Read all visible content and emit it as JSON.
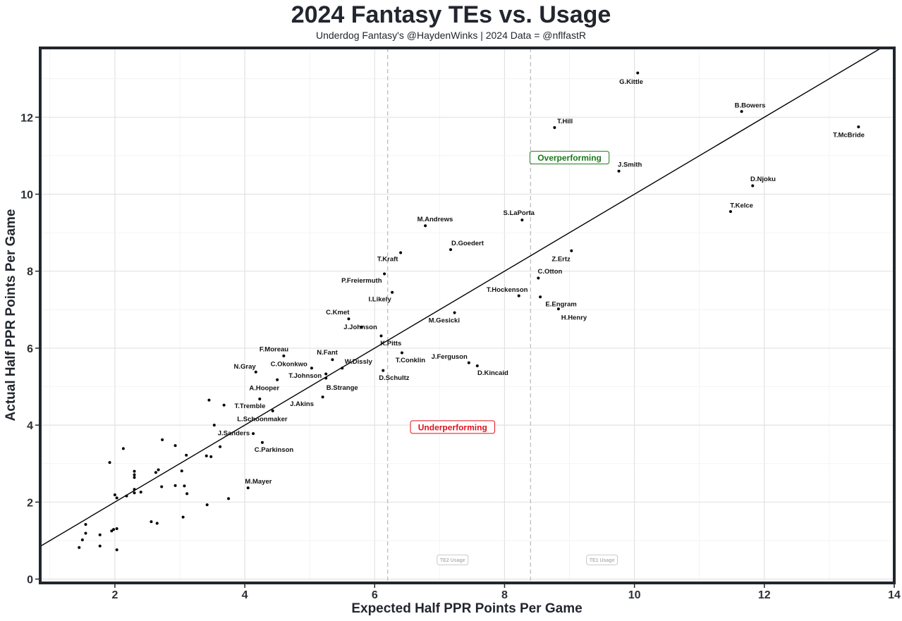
{
  "title": "2024 Fantasy TEs vs. Usage",
  "subtitle": "Underdog Fantasy's @HaydenWinks | 2024 Data = @nflfastR",
  "chart_data": {
    "type": "scatter",
    "title": "2024 Fantasy TEs vs. Usage",
    "subtitle": "Underdog Fantasy's @HaydenWinks | 2024 Data = @nflfastR",
    "xlabel": "Expected Half PPR Points Per Game",
    "ylabel": "Actual Half PPR Points Per Game",
    "xlim": [
      0.85,
      14.0
    ],
    "ylim": [
      -0.1,
      13.8
    ],
    "x_ticks": [
      2,
      4,
      6,
      8,
      10,
      12,
      14
    ],
    "y_ticks": [
      0,
      2,
      4,
      6,
      8,
      10,
      12
    ],
    "grid": true,
    "reference_line": {
      "slope": 1,
      "intercept": 0
    },
    "vlines": [
      {
        "x": 6.2,
        "label": "TE2 Usage",
        "label_x": 7.2,
        "label_y": 0.5
      },
      {
        "x": 8.4,
        "label": "TE1 Usage",
        "label_x": 9.5,
        "label_y": 0.5
      }
    ],
    "annotations": [
      {
        "text": "Overperforming",
        "x": 9.0,
        "y": 10.95,
        "color": "#1a7a1a"
      },
      {
        "text": "Underperforming",
        "x": 7.2,
        "y": 3.95,
        "color": "#e0111b"
      }
    ],
    "points": [
      {
        "name": "G.Kittle",
        "x": 10.05,
        "y": 13.15,
        "lx": 9.95,
        "ly": 12.93
      },
      {
        "name": "B.Bowers",
        "x": 11.65,
        "y": 12.15,
        "lx": 11.78,
        "ly": 12.32
      },
      {
        "name": "T.McBride",
        "x": 13.45,
        "y": 11.75,
        "lx": 13.3,
        "ly": 11.55
      },
      {
        "name": "T.Hill",
        "x": 8.77,
        "y": 11.73,
        "lx": 8.93,
        "ly": 11.9
      },
      {
        "name": "J.Smith",
        "x": 9.76,
        "y": 10.6,
        "lx": 9.93,
        "ly": 10.78
      },
      {
        "name": "D.Njoku",
        "x": 11.82,
        "y": 10.22,
        "lx": 11.98,
        "ly": 10.4
      },
      {
        "name": "T.Kelce",
        "x": 11.48,
        "y": 9.55,
        "lx": 11.65,
        "ly": 9.72
      },
      {
        "name": "S.LaPorta",
        "x": 8.27,
        "y": 9.33,
        "lx": 8.22,
        "ly": 9.52
      },
      {
        "name": "M.Andrews",
        "x": 6.78,
        "y": 9.18,
        "lx": 6.93,
        "ly": 9.36
      },
      {
        "name": "D.Goedert",
        "x": 7.17,
        "y": 8.56,
        "lx": 7.43,
        "ly": 8.74
      },
      {
        "name": "Z.Ertz",
        "x": 9.03,
        "y": 8.53,
        "lx": 8.87,
        "ly": 8.32
      },
      {
        "name": "T.Kraft",
        "x": 6.4,
        "y": 8.48,
        "lx": 6.2,
        "ly": 8.32
      },
      {
        "name": "P.Freiermuth",
        "x": 6.15,
        "y": 7.93,
        "lx": 5.8,
        "ly": 7.77
      },
      {
        "name": "C.Otton",
        "x": 8.52,
        "y": 7.82,
        "lx": 8.7,
        "ly": 8.0
      },
      {
        "name": "I.Likely",
        "x": 6.27,
        "y": 7.45,
        "lx": 6.08,
        "ly": 7.28
      },
      {
        "name": "T.Hockenson",
        "x": 8.22,
        "y": 7.36,
        "lx": 8.04,
        "ly": 7.53
      },
      {
        "name": "E.Engram",
        "x": 8.55,
        "y": 7.33,
        "lx": 8.87,
        "ly": 7.15
      },
      {
        "name": "H.Henry",
        "x": 8.83,
        "y": 7.02,
        "lx": 9.07,
        "ly": 6.8
      },
      {
        "name": "C.Kmet",
        "x": 5.6,
        "y": 6.76,
        "lx": 5.43,
        "ly": 6.94
      },
      {
        "name": "M.Gesicki",
        "x": 7.23,
        "y": 6.92,
        "lx": 7.07,
        "ly": 6.73
      },
      {
        "name": "J.Johnson",
        "x": 5.8,
        "y": 6.55,
        "lx": 5.78,
        "ly": 6.56
      },
      {
        "name": "K.Pitts",
        "x": 6.1,
        "y": 6.32,
        "lx": 6.25,
        "ly": 6.14
      },
      {
        "name": "F.Moreau",
        "x": 4.6,
        "y": 5.8,
        "lx": 4.45,
        "ly": 5.98
      },
      {
        "name": "T.Conklin",
        "x": 6.42,
        "y": 5.88,
        "lx": 6.55,
        "ly": 5.7
      },
      {
        "name": "N.Fant",
        "x": 5.35,
        "y": 5.7,
        "lx": 5.27,
        "ly": 5.9
      },
      {
        "name": "J.Ferguson",
        "x": 7.45,
        "y": 5.62,
        "lx": 7.15,
        "ly": 5.79
      },
      {
        "name": "W.Dissly",
        "x": 5.5,
        "y": 5.48,
        "lx": 5.75,
        "ly": 5.66
      },
      {
        "name": "D.Kincaid",
        "x": 7.58,
        "y": 5.54,
        "lx": 7.82,
        "ly": 5.37
      },
      {
        "name": "C.Okonkwo",
        "x": 5.03,
        "y": 5.48,
        "lx": 4.68,
        "ly": 5.6
      },
      {
        "name": "N.Gray",
        "x": 4.17,
        "y": 5.38,
        "lx": 4.0,
        "ly": 5.53
      },
      {
        "name": "D.Schultz",
        "x": 6.13,
        "y": 5.42,
        "lx": 6.3,
        "ly": 5.24
      },
      {
        "name": "T.Johnson",
        "x": 5.25,
        "y": 5.33,
        "lx": 4.93,
        "ly": 5.29
      },
      {
        "name": "B.Strange",
        "x": 5.25,
        "y": 5.22,
        "lx": 5.5,
        "ly": 4.98
      },
      {
        "name": "A.Hooper",
        "x": 4.5,
        "y": 5.18,
        "lx": 4.3,
        "ly": 4.97
      },
      {
        "name": "J.Akins",
        "x": 5.2,
        "y": 4.73,
        "lx": 4.88,
        "ly": 4.56
      },
      {
        "name": "T.Tremble",
        "x": 4.23,
        "y": 4.68,
        "lx": 4.08,
        "ly": 4.51
      },
      {
        "name": "L.Schoonmaker",
        "x": 4.43,
        "y": 4.37,
        "lx": 4.27,
        "ly": 4.17
      },
      {
        "name": "J.Sanders",
        "x": 3.53,
        "y": 4.0,
        "lx": 3.83,
        "ly": 3.8
      },
      {
        "name": "C.Parkinson",
        "x": 4.27,
        "y": 3.55,
        "lx": 4.45,
        "ly": 3.37
      },
      {
        "name": "M.Mayer",
        "x": 4.05,
        "y": 2.37,
        "lx": 4.21,
        "ly": 2.55
      },
      {
        "x": 3.45,
        "y": 4.65
      },
      {
        "x": 3.68,
        "y": 4.52
      },
      {
        "x": 4.13,
        "y": 3.78
      },
      {
        "x": 2.73,
        "y": 3.62
      },
      {
        "x": 2.93,
        "y": 3.47
      },
      {
        "x": 2.13,
        "y": 3.39
      },
      {
        "x": 3.62,
        "y": 3.44
      },
      {
        "x": 3.1,
        "y": 3.22
      },
      {
        "x": 3.41,
        "y": 3.2
      },
      {
        "x": 3.48,
        "y": 3.18
      },
      {
        "x": 1.92,
        "y": 3.03
      },
      {
        "x": 2.3,
        "y": 2.8
      },
      {
        "x": 2.67,
        "y": 2.84
      },
      {
        "x": 3.03,
        "y": 2.81
      },
      {
        "x": 2.63,
        "y": 2.77
      },
      {
        "x": 2.3,
        "y": 2.71
      },
      {
        "x": 2.3,
        "y": 2.64
      },
      {
        "x": 2.72,
        "y": 2.4
      },
      {
        "x": 2.93,
        "y": 2.43
      },
      {
        "x": 3.07,
        "y": 2.42
      },
      {
        "x": 2.3,
        "y": 2.33
      },
      {
        "x": 2.3,
        "y": 2.24
      },
      {
        "x": 2.4,
        "y": 2.26
      },
      {
        "x": 3.11,
        "y": 2.22
      },
      {
        "x": 2.0,
        "y": 2.19
      },
      {
        "x": 2.03,
        "y": 2.11
      },
      {
        "x": 2.18,
        "y": 2.16
      },
      {
        "x": 3.75,
        "y": 2.09
      },
      {
        "x": 3.42,
        "y": 1.93
      },
      {
        "x": 3.05,
        "y": 1.61
      },
      {
        "x": 2.56,
        "y": 1.49
      },
      {
        "x": 2.65,
        "y": 1.45
      },
      {
        "x": 1.55,
        "y": 1.42
      },
      {
        "x": 2.03,
        "y": 1.31
      },
      {
        "x": 1.98,
        "y": 1.29
      },
      {
        "x": 1.95,
        "y": 1.25
      },
      {
        "x": 1.55,
        "y": 1.19
      },
      {
        "x": 1.77,
        "y": 1.15
      },
      {
        "x": 1.5,
        "y": 1.02
      },
      {
        "x": 1.77,
        "y": 0.86
      },
      {
        "x": 1.45,
        "y": 0.82
      },
      {
        "x": 2.03,
        "y": 0.76
      }
    ]
  }
}
